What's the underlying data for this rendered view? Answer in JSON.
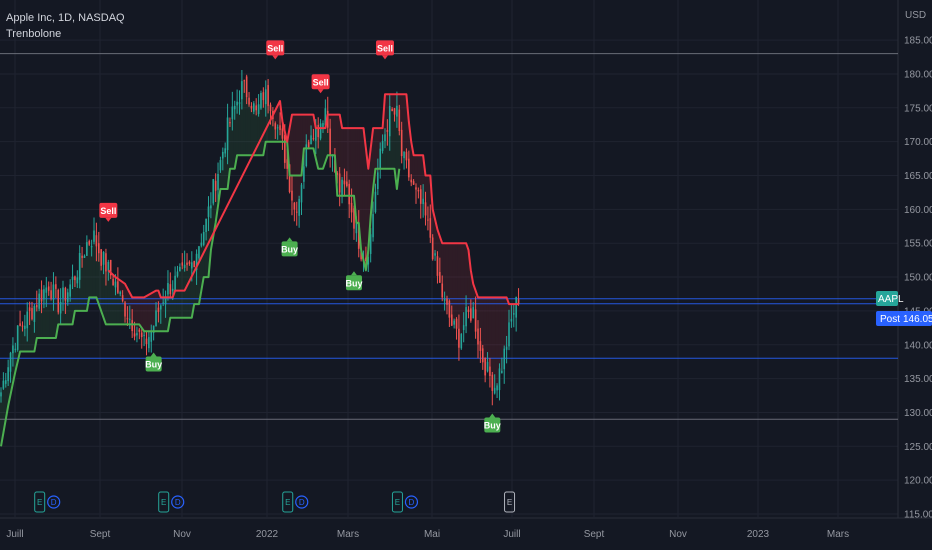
{
  "header": {
    "symbol_line": "Apple Inc, 1D, NASDAQ",
    "indicator": "Trenbolone"
  },
  "price_axis": {
    "currency": "USD"
  },
  "price_tags": {
    "ticker": "AAPL",
    "post_label": "Post",
    "post_value": "146.05"
  },
  "colors": {
    "bg": "#141823",
    "grid": "#1f2330",
    "up": "#26a69a",
    "down": "#ef5350",
    "support": "#4caf50",
    "resistance": "#f23645",
    "accent": "#2962ff"
  },
  "chart_data": {
    "type": "candlestick",
    "title": "Apple Inc, 1D, NASDAQ",
    "indicator_name": "Trenbolone",
    "ylim": [
      115,
      185
    ],
    "y_ticks": [
      "115.00",
      "120.00",
      "125.00",
      "130.00",
      "135.00",
      "140.00",
      "145.00",
      "150.00",
      "155.00",
      "160.00",
      "165.00",
      "170.00",
      "175.00",
      "180.00",
      "185.00"
    ],
    "x_ticks": [
      "Juill",
      "Sept",
      "Nov",
      "2022",
      "Mars",
      "Mai",
      "Juill",
      "Sept",
      "Nov",
      "2023",
      "Mars"
    ],
    "price_anchors": [
      [
        0,
        133
      ],
      [
        4,
        139
      ],
      [
        8,
        142.5
      ],
      [
        12,
        144.5
      ],
      [
        16,
        147
      ],
      [
        20,
        149
      ],
      [
        24,
        146
      ],
      [
        28,
        148
      ],
      [
        32,
        151
      ],
      [
        36,
        155
      ],
      [
        39,
        156
      ],
      [
        42,
        153
      ],
      [
        45,
        151
      ],
      [
        48,
        149
      ],
      [
        51,
        146
      ],
      [
        54,
        144
      ],
      [
        57,
        142
      ],
      [
        60,
        140
      ],
      [
        63,
        142
      ],
      [
        66,
        145
      ],
      [
        69,
        148
      ],
      [
        72,
        149
      ],
      [
        75,
        150
      ],
      [
        78,
        151
      ],
      [
        80,
        152
      ],
      [
        83,
        155
      ],
      [
        86,
        158
      ],
      [
        89,
        163
      ],
      [
        92,
        167
      ],
      [
        95,
        172
      ],
      [
        98,
        175
      ],
      [
        101,
        178
      ],
      [
        104,
        177
      ],
      [
        107,
        174
      ],
      [
        110,
        177
      ],
      [
        113,
        176
      ],
      [
        116,
        172
      ],
      [
        119,
        168
      ],
      [
        121,
        164
      ],
      [
        123,
        160
      ],
      [
        125,
        162
      ],
      [
        127,
        167
      ],
      [
        130,
        172
      ],
      [
        133,
        172
      ],
      [
        136,
        175
      ],
      [
        139,
        167
      ],
      [
        142,
        163
      ],
      [
        145,
        163
      ],
      [
        147,
        160
      ],
      [
        149,
        157
      ],
      [
        151,
        154
      ],
      [
        153,
        153
      ],
      [
        155,
        156
      ],
      [
        157,
        163
      ],
      [
        160,
        170
      ],
      [
        163,
        174
      ],
      [
        166,
        174
      ],
      [
        168,
        168
      ],
      [
        171,
        165
      ],
      [
        174,
        162
      ],
      [
        177,
        160
      ],
      [
        180,
        156
      ],
      [
        183,
        150
      ],
      [
        186,
        146
      ],
      [
        189,
        143
      ],
      [
        192,
        141
      ],
      [
        195,
        144
      ],
      [
        198,
        145
      ],
      [
        201,
        139
      ],
      [
        204,
        136
      ],
      [
        207,
        134
      ],
      [
        210,
        137
      ],
      [
        213,
        142
      ],
      [
        215,
        145
      ],
      [
        217,
        147
      ]
    ],
    "series": [
      {
        "name": "support",
        "color": "#4caf50",
        "points": [
          [
            0,
            125
          ],
          [
            3,
            131
          ],
          [
            6,
            136
          ],
          [
            8,
            139
          ],
          [
            14,
            139
          ],
          [
            15,
            141
          ],
          [
            23,
            141
          ],
          [
            24,
            143
          ],
          [
            30,
            143
          ],
          [
            31,
            145
          ],
          [
            36,
            145
          ],
          [
            37,
            147
          ],
          [
            40,
            147
          ],
          [
            44,
            143
          ],
          [
            58,
            143
          ],
          [
            60,
            142
          ],
          [
            63,
            142
          ],
          [
            70,
            142
          ],
          [
            71,
            144
          ],
          [
            80,
            144
          ],
          [
            81,
            146
          ],
          [
            83,
            146
          ],
          [
            85,
            150
          ],
          [
            87,
            150
          ],
          [
            88,
            154
          ],
          [
            90,
            158
          ],
          [
            92,
            163
          ],
          [
            95,
            163
          ],
          [
            96,
            166
          ],
          [
            98,
            166
          ],
          [
            99,
            168
          ],
          [
            110,
            168
          ],
          [
            111,
            170
          ],
          [
            120,
            170
          ],
          [
            121,
            165
          ],
          [
            126,
            165
          ],
          [
            127,
            169
          ],
          [
            131,
            169
          ],
          [
            133,
            166
          ],
          [
            135,
            166
          ],
          [
            137,
            168
          ],
          [
            140,
            168
          ],
          [
            141,
            162
          ],
          [
            148,
            162
          ],
          [
            149,
            158
          ],
          [
            150,
            158
          ],
          [
            151,
            154
          ],
          [
            153,
            151
          ],
          [
            154,
            154
          ],
          [
            155,
            159
          ],
          [
            156,
            163
          ],
          [
            157,
            166
          ],
          [
            165,
            166
          ],
          [
            166,
            163
          ],
          [
            167,
            166
          ]
        ]
      },
      {
        "name": "resistance",
        "color": "#f23645",
        "points": [
          [
            45,
            151
          ],
          [
            48,
            150
          ],
          [
            52,
            149
          ],
          [
            55,
            147
          ],
          [
            60,
            147
          ],
          [
            65,
            148
          ],
          [
            66,
            148
          ],
          [
            67,
            147
          ],
          [
            72,
            147
          ],
          [
            73,
            148
          ],
          [
            76,
            148
          ],
          [
            77,
            148
          ],
          [
            117,
            176
          ],
          [
            118,
            173
          ],
          [
            120,
            170
          ],
          [
            122,
            174
          ],
          [
            131,
            174
          ],
          [
            132,
            172
          ],
          [
            136,
            172
          ],
          [
            137,
            174
          ],
          [
            142,
            174
          ],
          [
            143,
            172
          ],
          [
            152,
            172
          ],
          [
            153,
            169
          ],
          [
            154,
            166
          ],
          [
            155,
            169
          ],
          [
            156,
            172
          ],
          [
            160,
            172
          ],
          [
            161,
            177
          ],
          [
            163,
            177
          ],
          [
            170,
            177
          ],
          [
            171,
            173
          ],
          [
            172,
            170
          ],
          [
            173,
            168
          ],
          [
            177,
            168
          ],
          [
            178,
            165
          ],
          [
            180,
            165
          ],
          [
            181,
            160
          ],
          [
            183,
            157
          ],
          [
            185,
            155
          ],
          [
            195,
            155
          ],
          [
            196,
            154
          ],
          [
            197,
            151
          ],
          [
            198,
            149
          ],
          [
            200,
            147
          ],
          [
            212,
            147
          ],
          [
            213,
            146
          ],
          [
            217,
            146
          ]
        ]
      }
    ],
    "signals": [
      {
        "type": "Sell",
        "day": 45,
        "price": 158
      },
      {
        "type": "Buy",
        "day": 64,
        "price": 139
      },
      {
        "type": "Sell",
        "day": 115,
        "price": 182
      },
      {
        "type": "Buy",
        "day": 121,
        "price": 156
      },
      {
        "type": "Sell",
        "day": 134,
        "price": 177
      },
      {
        "type": "Buy",
        "day": 148,
        "price": 151
      },
      {
        "type": "Sell",
        "day": 161,
        "price": 182
      },
      {
        "type": "Buy",
        "day": 206,
        "price": 130
      }
    ],
    "events": [
      {
        "day": 20,
        "icons": [
          "E",
          "D"
        ]
      },
      {
        "day": 72,
        "icons": [
          "E",
          "D"
        ]
      },
      {
        "day": 124,
        "icons": [
          "E",
          "D"
        ]
      },
      {
        "day": 170,
        "icons": [
          "E",
          "D"
        ]
      },
      {
        "day": 217,
        "icons": [
          "E"
        ]
      }
    ],
    "h_lines": [
      {
        "price": 183,
        "color": "#787b86"
      },
      {
        "price": 146.8,
        "color": "#2962ff"
      },
      {
        "price": 146.05,
        "color": "#2962ff"
      },
      {
        "price": 138,
        "color": "#2962ff"
      },
      {
        "price": 129,
        "color": "#787b86"
      }
    ]
  }
}
